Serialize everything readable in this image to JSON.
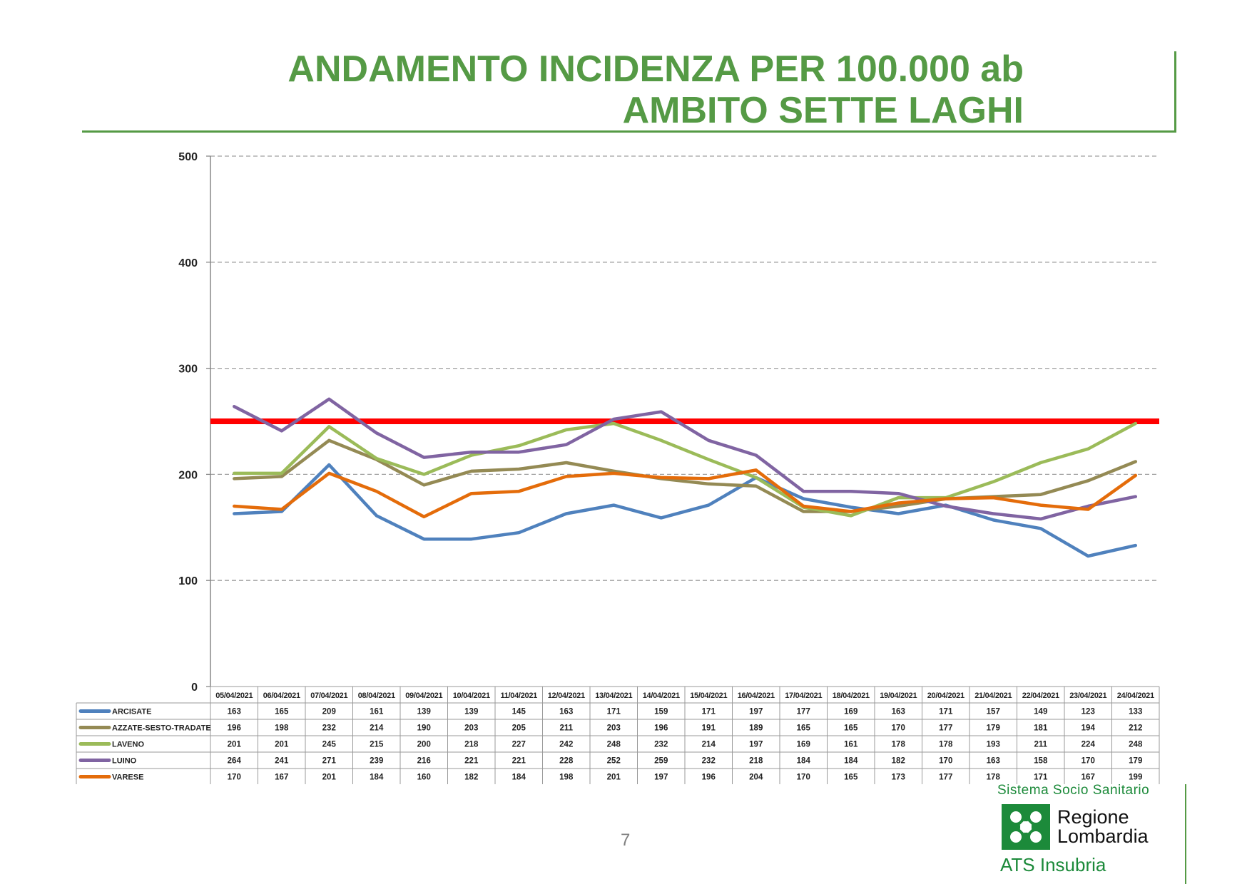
{
  "title": {
    "line1": "ANDAMENTO INCIDENZA PER 100.000 ab",
    "line2": "AMBITO SETTE LAGHI"
  },
  "chart_data": {
    "type": "line",
    "title": "ANDAMENTO INCIDENZA PER 100.000 ab AMBITO SETTE LAGHI",
    "xlabel": "",
    "ylabel": "",
    "ylim": [
      0,
      500
    ],
    "yticks": [
      0,
      100,
      200,
      300,
      400,
      500
    ],
    "grid": true,
    "threshold": {
      "value": 250,
      "color": "#ff0000"
    },
    "categories": [
      "05/04/2021",
      "06/04/2021",
      "07/04/2021",
      "08/04/2021",
      "09/04/2021",
      "10/04/2021",
      "11/04/2021",
      "12/04/2021",
      "13/04/2021",
      "14/04/2021",
      "15/04/2021",
      "16/04/2021",
      "17/04/2021",
      "18/04/2021",
      "19/04/2021",
      "20/04/2021",
      "21/04/2021",
      "22/04/2021",
      "23/04/2021",
      "24/04/2021"
    ],
    "series": [
      {
        "name": "ARCISATE",
        "color": "#4f81bd",
        "values": [
          163,
          165,
          209,
          161,
          139,
          139,
          145,
          163,
          171,
          159,
          171,
          197,
          177,
          169,
          163,
          171,
          157,
          149,
          123,
          133
        ]
      },
      {
        "name": "AZZATE-SESTO-TRADATE",
        "color": "#948a54",
        "values": [
          196,
          198,
          232,
          214,
          190,
          203,
          205,
          211,
          203,
          196,
          191,
          189,
          165,
          165,
          170,
          177,
          179,
          181,
          194,
          212
        ]
      },
      {
        "name": "LAVENO",
        "color": "#9bbb59",
        "values": [
          201,
          201,
          245,
          215,
          200,
          218,
          227,
          242,
          248,
          232,
          214,
          197,
          169,
          161,
          178,
          178,
          193,
          211,
          224,
          248
        ]
      },
      {
        "name": "LUINO",
        "color": "#8064a2",
        "values": [
          264,
          241,
          271,
          239,
          216,
          221,
          221,
          228,
          252,
          259,
          232,
          218,
          184,
          184,
          182,
          170,
          163,
          158,
          170,
          179
        ]
      },
      {
        "name": "VARESE",
        "color": "#e46c0a",
        "values": [
          170,
          167,
          201,
          184,
          160,
          182,
          184,
          198,
          201,
          197,
          196,
          204,
          170,
          165,
          173,
          177,
          178,
          171,
          167,
          199
        ]
      }
    ]
  },
  "page_number": "7",
  "footer": {
    "system": "Sistema Socio Sanitario",
    "brand_line1": "Regione",
    "brand_line2": "Lombardia",
    "ats": "ATS Insubria"
  }
}
